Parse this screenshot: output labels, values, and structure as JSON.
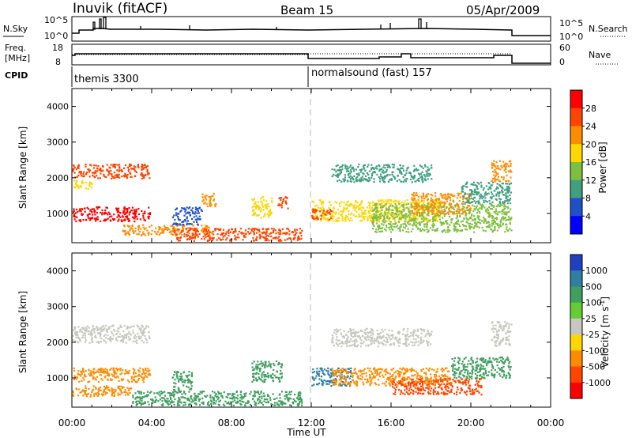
{
  "header": {
    "station": "Inuvik (fitACF)",
    "beam": "Beam 15",
    "date": "05/Apr/2009"
  },
  "nsky_panel": {
    "left_label": "N.Sky",
    "right_label": "N.Search",
    "tick_top": "10^5",
    "tick_bottom": "10^0"
  },
  "freq_panel": {
    "left_label_1": "Freq.",
    "left_label_2": "[MHz]",
    "right_label": "Nave",
    "left_ticks": [
      "18",
      "8"
    ],
    "right_ticks": [
      "60",
      "0"
    ]
  },
  "cpid": {
    "label": "CPID",
    "modes": [
      {
        "name": "themis 3300",
        "start_hour": 0
      },
      {
        "name": "normalsound (fast) 157",
        "start_hour": 12
      }
    ]
  },
  "chart_data": [
    {
      "type": "heatmap",
      "parameter": "Power",
      "colorbar_label": "Power [dB]",
      "ylabel": "Slant Range [km]",
      "xlabel": "Time UT",
      "x_range_hours": [
        0,
        24
      ],
      "y_range_km": [
        180,
        4500
      ],
      "y_ticks": [
        1000,
        2000,
        3000,
        4000
      ],
      "x_ticks": [
        "00:00",
        "04:00",
        "08:00",
        "12:00",
        "16:00",
        "20:00",
        "00:00"
      ],
      "colorbar_ticks": [
        "28",
        "24",
        "20",
        "16",
        "12",
        "8",
        "4"
      ],
      "colorbar_colors": [
        "#ff0000",
        "#ff4500",
        "#ff8c00",
        "#ffd700",
        "#7fbf3f",
        "#3f9f7f",
        "#2050c8",
        "#0000ff"
      ],
      "scatter_regions": [
        {
          "t0": 0.0,
          "t1": 3.9,
          "r0": 800,
          "r1": 1200,
          "level": 28
        },
        {
          "t0": 0.0,
          "t1": 3.9,
          "r0": 2000,
          "r1": 2400,
          "level": 24
        },
        {
          "t0": 0.0,
          "t1": 1.0,
          "r0": 1700,
          "r1": 1950,
          "level": 16
        },
        {
          "t0": 2.5,
          "t1": 7.0,
          "r0": 400,
          "r1": 700,
          "level": 20
        },
        {
          "t0": 5.0,
          "t1": 11.5,
          "r0": 250,
          "r1": 600,
          "level": 26
        },
        {
          "t0": 6.5,
          "t1": 7.2,
          "r0": 1200,
          "r1": 1600,
          "level": 22
        },
        {
          "t0": 9.0,
          "t1": 10.0,
          "r0": 900,
          "r1": 1500,
          "level": 18
        },
        {
          "t0": 10.3,
          "t1": 10.8,
          "r0": 1100,
          "r1": 1500,
          "level": 24
        },
        {
          "t0": 12.0,
          "t1": 18.5,
          "r0": 800,
          "r1": 1400,
          "level": 16
        },
        {
          "t0": 12.0,
          "t1": 13.0,
          "r0": 850,
          "r1": 1150,
          "level": 26
        },
        {
          "t0": 13.0,
          "t1": 18.0,
          "r0": 1900,
          "r1": 2400,
          "level": 8
        },
        {
          "t0": 15.0,
          "t1": 22.0,
          "r0": 500,
          "r1": 1300,
          "level": 14
        },
        {
          "t0": 17.0,
          "t1": 20.0,
          "r0": 1000,
          "r1": 1600,
          "level": 22
        },
        {
          "t0": 19.5,
          "t1": 22.0,
          "r0": 1300,
          "r1": 1900,
          "level": 10
        },
        {
          "t0": 21.0,
          "t1": 22.0,
          "r0": 1900,
          "r1": 2500,
          "level": 22
        },
        {
          "t0": 5.0,
          "t1": 6.5,
          "r0": 700,
          "r1": 1200,
          "level": 6
        }
      ]
    },
    {
      "type": "heatmap",
      "parameter": "Velocity",
      "colorbar_label": "Velocity [m s^-1]",
      "ylabel": "Slant Range [km]",
      "xlabel": "Time UT",
      "x_range_hours": [
        0,
        24
      ],
      "y_range_km": [
        180,
        4500
      ],
      "y_ticks": [
        1000,
        2000,
        3000,
        4000
      ],
      "x_ticks": [
        "00:00",
        "04:00",
        "08:00",
        "12:00",
        "16:00",
        "20:00",
        "00:00"
      ],
      "colorbar_ticks": [
        "1000",
        "500",
        "100",
        "25",
        "-25",
        "-100",
        "-500",
        "-1000"
      ],
      "colorbar_colors": [
        "#2040c0",
        "#2e7fa0",
        "#3f9f5f",
        "#66cc33",
        "#c8c8c0",
        "#ffd700",
        "#ff8c00",
        "#ff4500",
        "#ff0000"
      ],
      "scatter_regions": [
        {
          "t0": 0.0,
          "t1": 3.9,
          "r0": 2000,
          "r1": 2500,
          "level": 0
        },
        {
          "t0": 0.0,
          "t1": 3.9,
          "r0": 900,
          "r1": 1300,
          "level": -120
        },
        {
          "t0": 0.0,
          "t1": 3.0,
          "r0": 500,
          "r1": 800,
          "level": -300
        },
        {
          "t0": 3.0,
          "t1": 11.5,
          "r0": 250,
          "r1": 650,
          "level": 200
        },
        {
          "t0": 5.0,
          "t1": 6.0,
          "r0": 600,
          "r1": 1200,
          "level": 300
        },
        {
          "t0": 9.0,
          "t1": 10.5,
          "r0": 900,
          "r1": 1500,
          "level": 400
        },
        {
          "t0": 12.0,
          "t1": 14.0,
          "r0": 800,
          "r1": 1300,
          "level": 600
        },
        {
          "t0": 13.0,
          "t1": 19.0,
          "r0": 800,
          "r1": 1300,
          "level": -400
        },
        {
          "t0": 13.0,
          "t1": 18.0,
          "r0": 1900,
          "r1": 2400,
          "level": 0
        },
        {
          "t0": 16.0,
          "t1": 20.5,
          "r0": 550,
          "r1": 1000,
          "level": -600
        },
        {
          "t0": 19.0,
          "t1": 22.0,
          "r0": 1000,
          "r1": 1600,
          "level": 200
        },
        {
          "t0": 21.0,
          "t1": 22.0,
          "r0": 1900,
          "r1": 2600,
          "level": 0
        }
      ]
    }
  ]
}
